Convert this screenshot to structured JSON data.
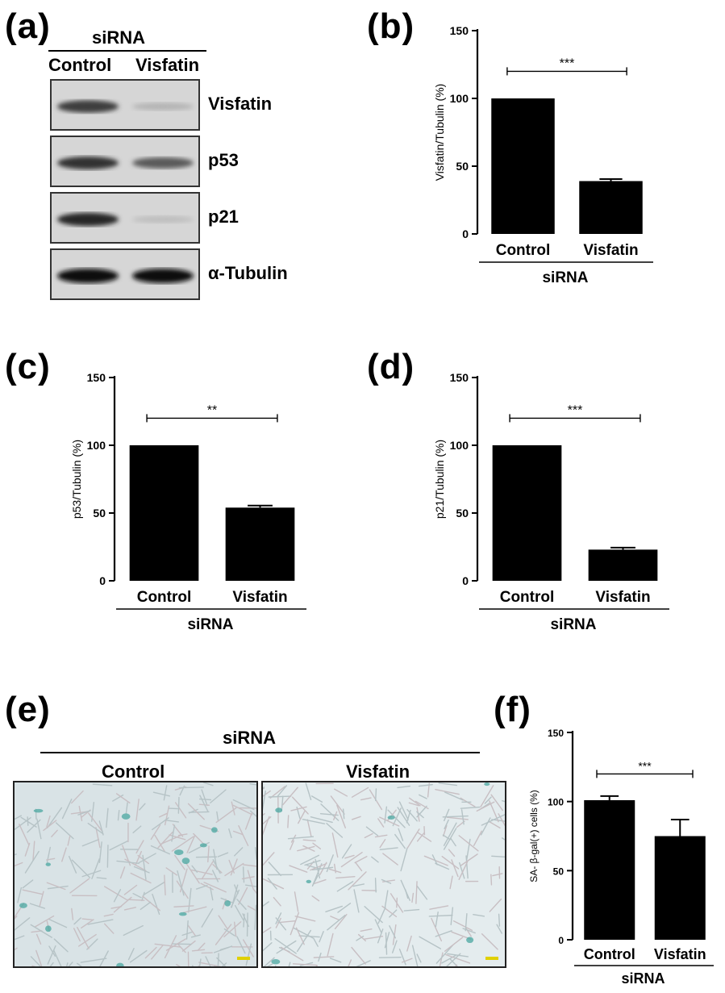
{
  "panels": {
    "a": {
      "label": "(a)",
      "sirna": "siRNA",
      "lanes": [
        "Control",
        "Visfatin"
      ],
      "bands": [
        {
          "protein": "Visfatin",
          "intensity": [
            0.75,
            0.15
          ]
        },
        {
          "protein": "p53",
          "intensity": [
            0.8,
            0.6
          ]
        },
        {
          "protein": "p21",
          "intensity": [
            0.85,
            0.1
          ]
        },
        {
          "protein": "α-Tubulin",
          "intensity": [
            1.0,
            1.0
          ]
        }
      ]
    },
    "b": {
      "label": "(b)"
    },
    "c": {
      "label": "(c)"
    },
    "d": {
      "label": "(d)"
    },
    "e": {
      "label": "(e)",
      "sirna": "siRNA",
      "images": [
        "Control",
        "Visfatin"
      ]
    },
    "f": {
      "label": "(f)"
    }
  },
  "chart_data": [
    {
      "id": "b",
      "type": "bar",
      "categories": [
        "Control",
        "Visfatin"
      ],
      "values": [
        100,
        39
      ],
      "errors": [
        0,
        1.5
      ],
      "ylabel": "Visfatin/Tubulin (%)",
      "xlabel": "siRNA",
      "ylim": [
        0,
        150
      ],
      "yticks": [
        0,
        50,
        100,
        150
      ],
      "significance": "***"
    },
    {
      "id": "c",
      "type": "bar",
      "categories": [
        "Control",
        "Visfatin"
      ],
      "values": [
        100,
        54
      ],
      "errors": [
        0,
        1.5
      ],
      "ylabel": "p53/Tubulin (%)",
      "xlabel": "siRNA",
      "ylim": [
        0,
        150
      ],
      "yticks": [
        0,
        50,
        100,
        150
      ],
      "significance": "**"
    },
    {
      "id": "d",
      "type": "bar",
      "categories": [
        "Control",
        "Visfatin"
      ],
      "values": [
        100,
        23
      ],
      "errors": [
        0,
        1.5
      ],
      "ylabel": "p21/Tubulin (%)",
      "xlabel": "siRNA",
      "ylim": [
        0,
        150
      ],
      "yticks": [
        0,
        50,
        100,
        150
      ],
      "significance": "***"
    },
    {
      "id": "f",
      "type": "bar",
      "categories": [
        "Control",
        "Visfatin"
      ],
      "values": [
        101,
        75
      ],
      "errors": [
        3,
        12
      ],
      "ylabel": "SA- β-gal(+) cells (%)",
      "xlabel": "siRNA",
      "ylim": [
        0,
        150
      ],
      "yticks": [
        0,
        50,
        100,
        150
      ],
      "significance": "***"
    }
  ]
}
